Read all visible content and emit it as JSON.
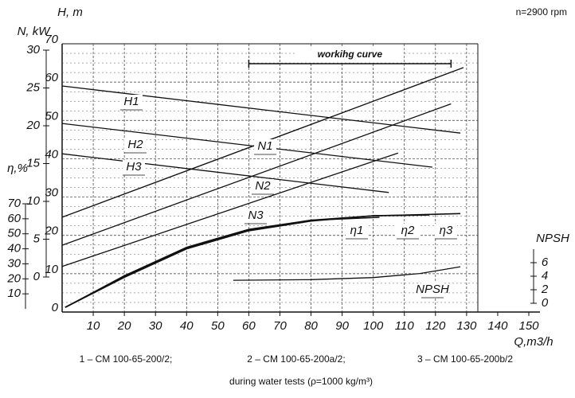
{
  "chart_data": {
    "type": "line",
    "speed": "n=2900 rpm",
    "x_label": "Q,m3/h",
    "xlim": [
      0,
      150
    ],
    "xticks": [
      10,
      20,
      30,
      40,
      50,
      60,
      70,
      80,
      90,
      100,
      110,
      120,
      130,
      140,
      150
    ],
    "y_label": "H, m",
    "ylim": [
      0,
      70
    ],
    "yticks": [
      0,
      10,
      20,
      30,
      40,
      50,
      60,
      70
    ],
    "n_axis": {
      "label": "N, kW",
      "lim": [
        0,
        30
      ],
      "ticks": [
        0,
        5,
        10,
        15,
        20,
        25,
        30
      ]
    },
    "eta_axis": {
      "label": "η,%",
      "lim": [
        0,
        70
      ],
      "ticks": [
        10,
        20,
        30,
        40,
        50,
        60,
        70
      ]
    },
    "npsh_axis": {
      "label": "NPSH",
      "lim": [
        0,
        8
      ],
      "ticks": [
        0,
        2,
        4,
        6
      ]
    },
    "grid": true,
    "annotation": "workihg curve",
    "working_range": [
      60,
      125
    ],
    "series": [
      {
        "name": "H1",
        "axis": "H",
        "color": "#111",
        "x": [
          0,
          128
        ],
        "values": [
          59,
          46.7
        ]
      },
      {
        "name": "H2",
        "axis": "H",
        "color": "#111",
        "x": [
          0,
          119
        ],
        "values": [
          49.2,
          37.8
        ]
      },
      {
        "name": "H3",
        "axis": "H",
        "color": "#111",
        "x": [
          0,
          105
        ],
        "values": [
          41.3,
          31.2
        ]
      },
      {
        "name": "N1",
        "axis": "N",
        "color": "#111",
        "x": [
          0,
          129
        ],
        "values": [
          7.9,
          27.7
        ]
      },
      {
        "name": "N2",
        "axis": "N",
        "color": "#111",
        "x": [
          0,
          125
        ],
        "values": [
          4.2,
          22.9
        ]
      },
      {
        "name": "N3",
        "axis": "N",
        "color": "#111",
        "x": [
          0,
          108
        ],
        "values": [
          1.4,
          16.4
        ]
      },
      {
        "name": "η1",
        "axis": "eta",
        "color": "#111",
        "x": [
          1,
          20,
          40,
          60,
          80,
          102
        ],
        "values": [
          1,
          22,
          41,
          53,
          59,
          61
        ]
      },
      {
        "name": "η2",
        "axis": "eta",
        "color": "#111",
        "x": [
          1,
          20,
          40,
          60,
          80,
          100,
          118
        ],
        "values": [
          1,
          21.5,
          40.5,
          52.5,
          59,
          62,
          62.5
        ]
      },
      {
        "name": "η3",
        "axis": "eta",
        "color": "#111",
        "x": [
          1,
          20,
          40,
          60,
          80,
          100,
          120,
          128
        ],
        "values": [
          1,
          21,
          40,
          52,
          58.5,
          62,
          63,
          63.5
        ]
      },
      {
        "name": "NPSH",
        "axis": "npsh",
        "color": "#111",
        "x": [
          55,
          80,
          100,
          115,
          128
        ],
        "values": [
          3.4,
          3.5,
          3.8,
          4.4,
          5.4
        ]
      }
    ],
    "notes": [
      "1 – CM 100-65-200/2;",
      "2 – CM 100-65-200a/2;",
      "3 – CM 100-65-200b/2",
      "during water tests (ρ=1000 kg/m³)"
    ]
  }
}
